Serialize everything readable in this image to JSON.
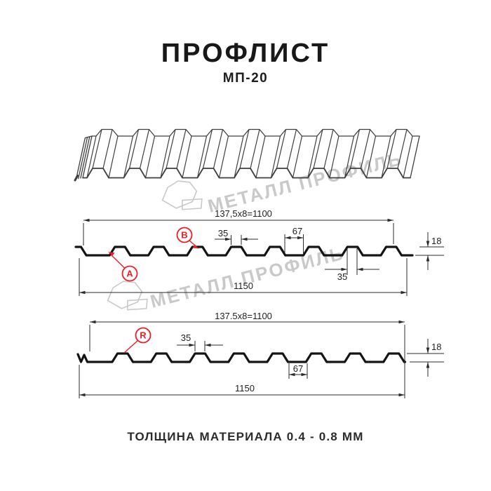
{
  "header": {
    "title": "ПРОФЛИСТ",
    "subtitle": "МП-20"
  },
  "footer": {
    "text": "ТОЛЩИНА МАТЕРИАЛА 0.4 - 0.8 ММ"
  },
  "watermark": {
    "text": "МЕТАЛЛ ПРОФИЛЬ"
  },
  "colors": {
    "red": "#ee1c25",
    "line": "#2b2b2b",
    "profile": "#141414",
    "sheet": "#3f3f3f",
    "watermark": "#c9c9c9"
  },
  "section_top": {
    "markers": {
      "a": "A",
      "b": "B"
    },
    "dims": {
      "pitch": "137,5x8=1100",
      "rib_top": "35",
      "valley": "67",
      "height": "18",
      "rib_top_alt": "35",
      "total": "1150"
    }
  },
  "section_bottom": {
    "markers": {
      "r": "R"
    },
    "dims": {
      "pitch": "137.5x8=1100",
      "rib_top": "35",
      "valley": "67",
      "height": "18",
      "total": "1150"
    }
  }
}
